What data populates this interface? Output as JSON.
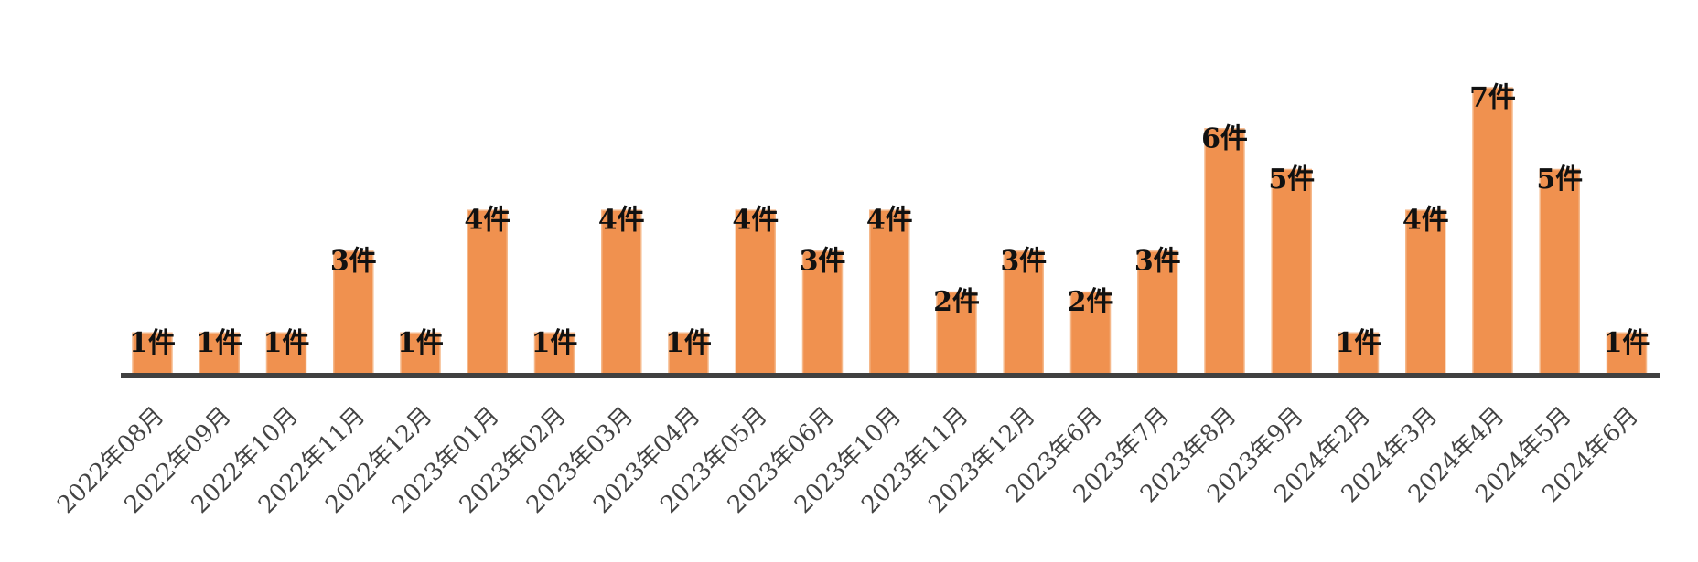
{
  "chart_data": {
    "type": "bar",
    "categories": [
      "2022年08月",
      "2022年09月",
      "2022年10月",
      "2022年11月",
      "2022年12月",
      "2023年01月",
      "2023年02月",
      "2023年03月",
      "2023年04月",
      "2023年05月",
      "2023年06月",
      "2023年10月",
      "2023年11月",
      "2023年12月",
      "2023年6月",
      "2023年7月",
      "2023年8月",
      "2023年9月",
      "2024年2月",
      "2024年3月",
      "2024年4月",
      "2024年5月",
      "2024年6月"
    ],
    "values": [
      1,
      1,
      1,
      3,
      1,
      4,
      1,
      4,
      1,
      4,
      3,
      4,
      2,
      3,
      2,
      3,
      6,
      5,
      1,
      4,
      7,
      5,
      1
    ],
    "data_labels": [
      "1件",
      "1件",
      "1件",
      "3件",
      "1件",
      "4件",
      "1件",
      "4件",
      "1件",
      "4件",
      "3件",
      "4件",
      "2件",
      "3件",
      "2件",
      "3件",
      "6件",
      "5件",
      "1件",
      "4件",
      "7件",
      "5件",
      "1件"
    ],
    "ylim": [
      0,
      7
    ],
    "grid": false,
    "legend": "none",
    "colors": {
      "bar": "#F0914F",
      "bar_edge": "#F5B88A",
      "axis": "#404040",
      "label": "#111111",
      "tick": "#444444"
    }
  }
}
